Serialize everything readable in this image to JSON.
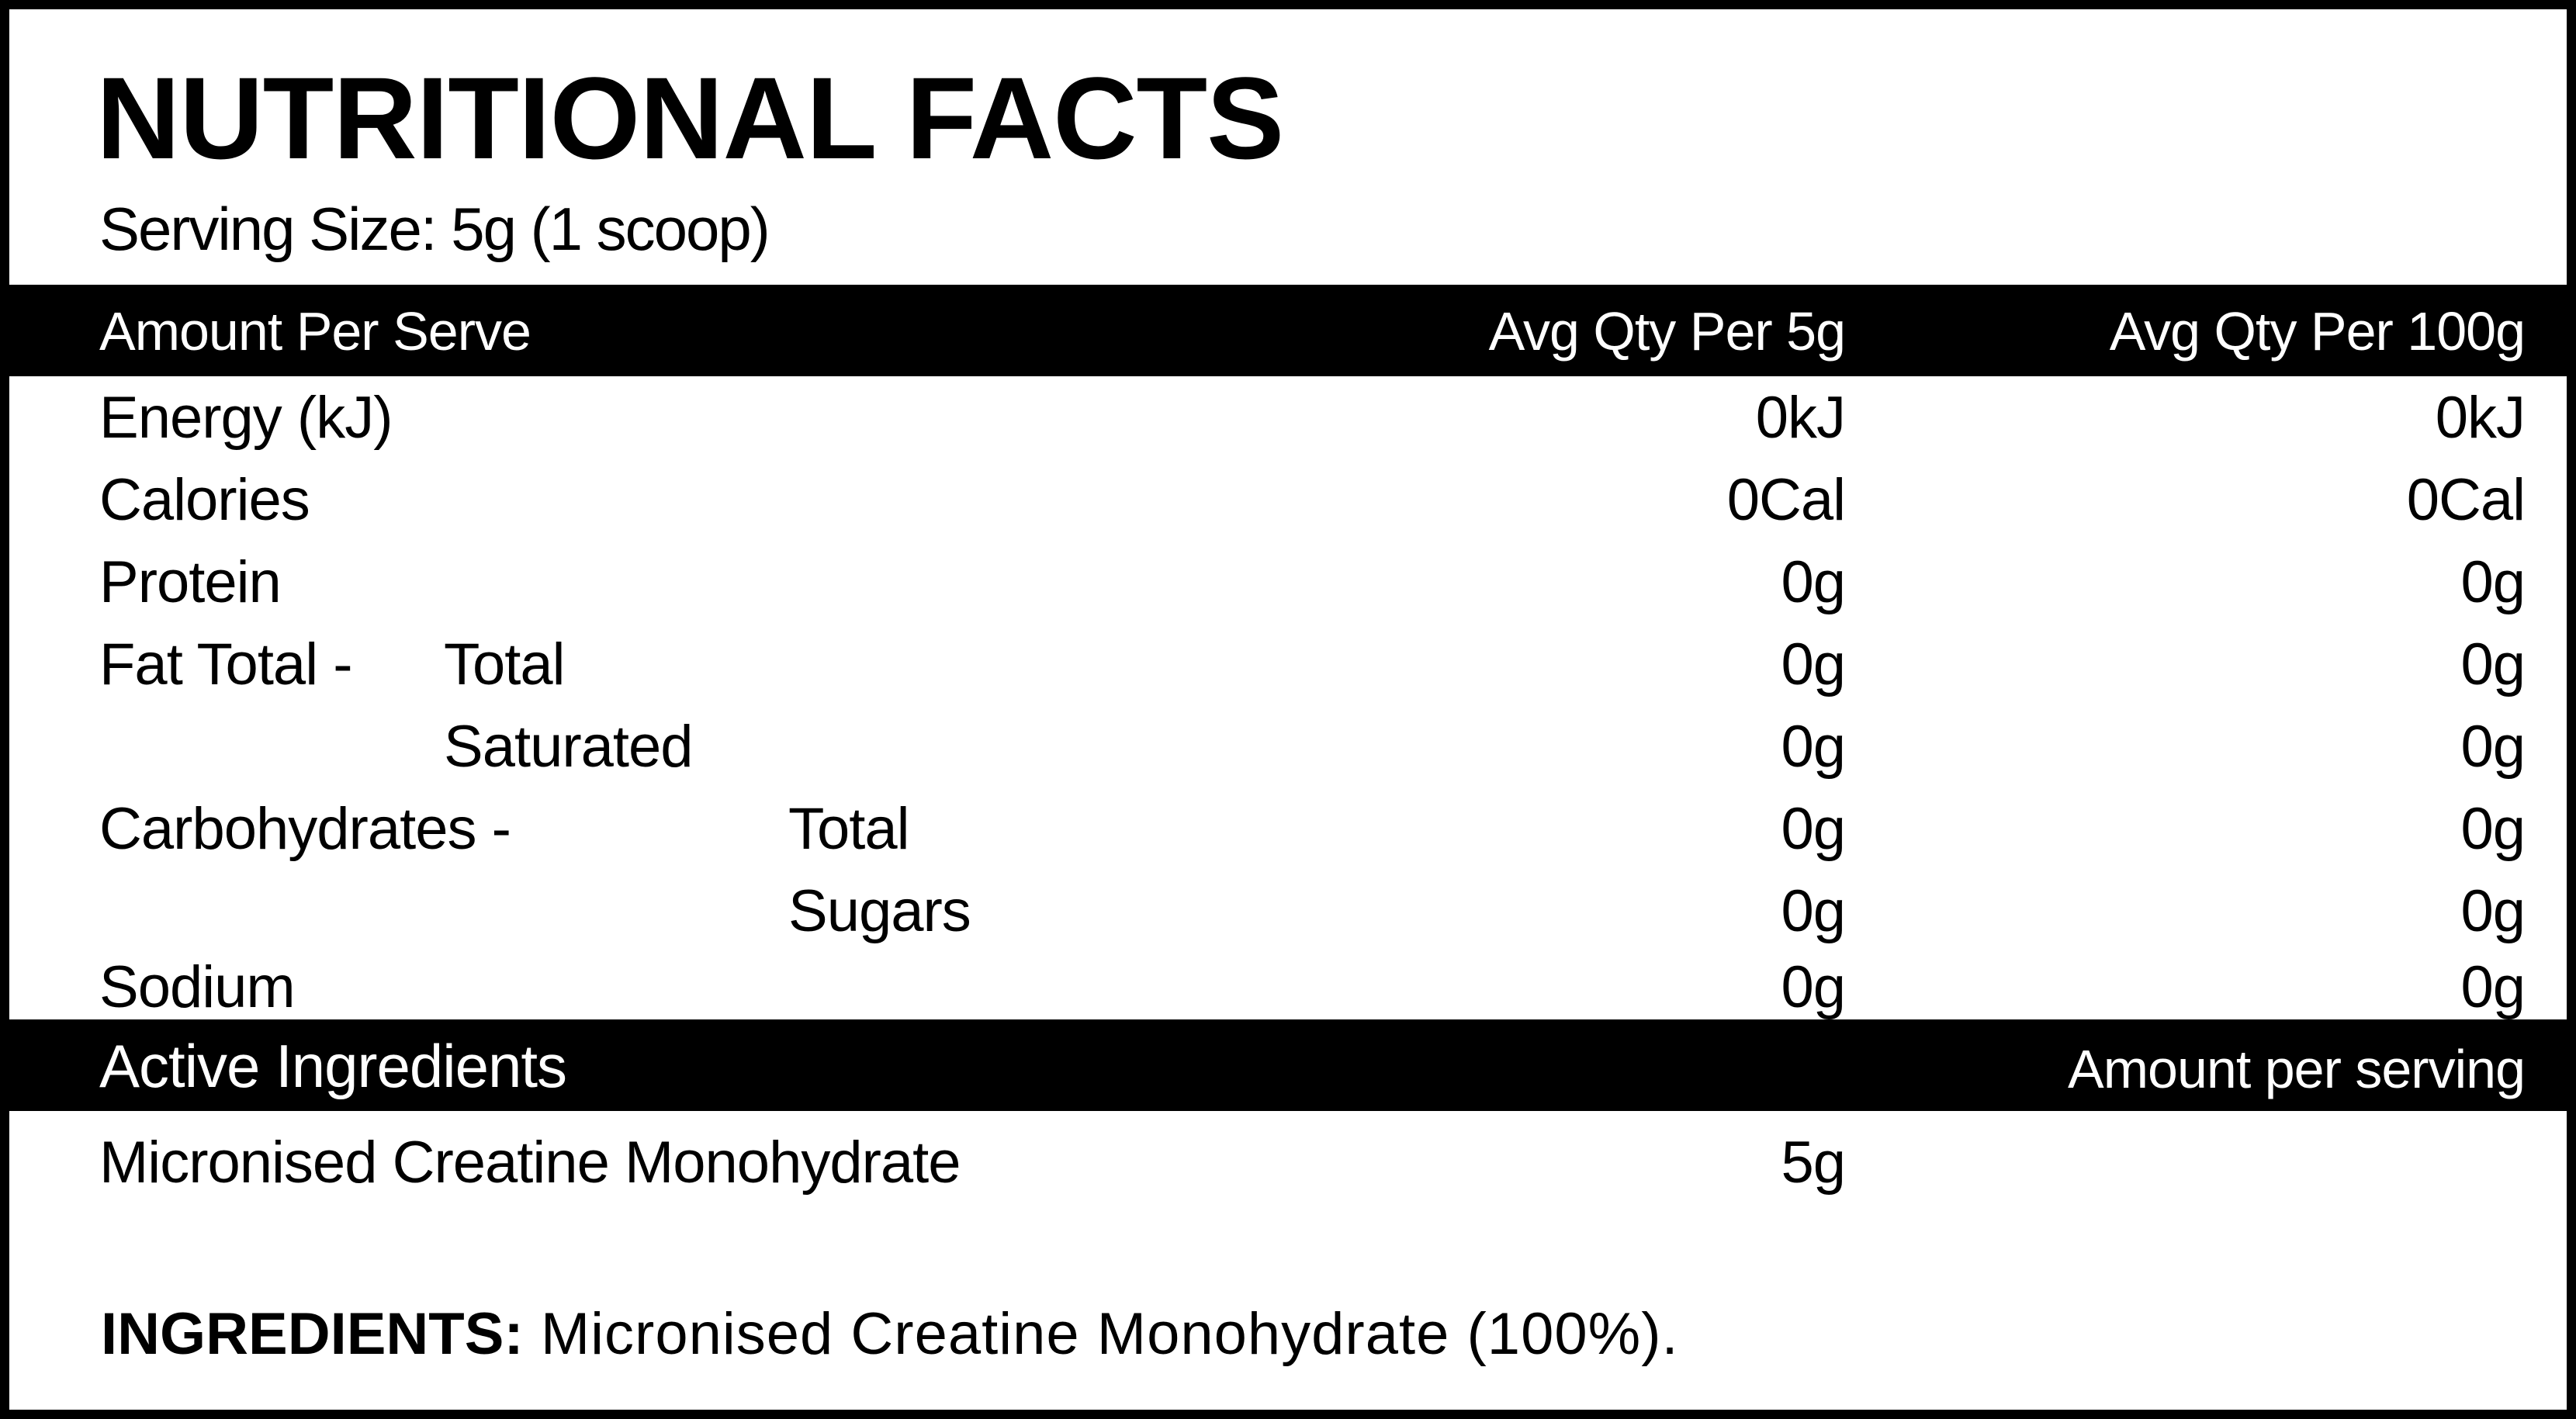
{
  "panel": {
    "title": "NUTRITIONAL FACTS",
    "serving_size": "Serving Size: 5g (1 scoop)"
  },
  "header_bar": {
    "col_label": "Amount Per Serve",
    "col_per_5g": "Avg Qty Per 5g",
    "col_per_100g": "Avg Qty Per 100g"
  },
  "rows": [
    {
      "label": "Energy (kJ)",
      "sub": "",
      "per_5g": "0kJ",
      "per_100g": "0kJ"
    },
    {
      "label": "Calories",
      "sub": "",
      "per_5g": "0Cal",
      "per_100g": "0Cal"
    },
    {
      "label": "Protein",
      "sub": "",
      "per_5g": "0g",
      "per_100g": "0g"
    },
    {
      "label": "Fat Total -",
      "sub": "Total",
      "per_5g": "0g",
      "per_100g": "0g"
    },
    {
      "label": "",
      "sub": "Saturated",
      "per_5g": "0g",
      "per_100g": "0g"
    },
    {
      "label": "Carbohydrates -",
      "sub": "Total",
      "per_5g": "0g",
      "per_100g": "0g"
    },
    {
      "label": "",
      "sub": "Sugars",
      "per_5g": "0g",
      "per_100g": "0g"
    },
    {
      "label": "Sodium",
      "sub": "",
      "per_5g": "0g",
      "per_100g": "0g"
    }
  ],
  "active_bar": {
    "label": "Active Ingredients",
    "right_label": "Amount per serving"
  },
  "active_items": [
    {
      "name": "Micronised Creatine Monohydrate",
      "amount": "5g"
    }
  ],
  "ingredients": {
    "label": "INGREDIENTS:",
    "text": "Micronised Creatine Monohydrate (100%)."
  }
}
